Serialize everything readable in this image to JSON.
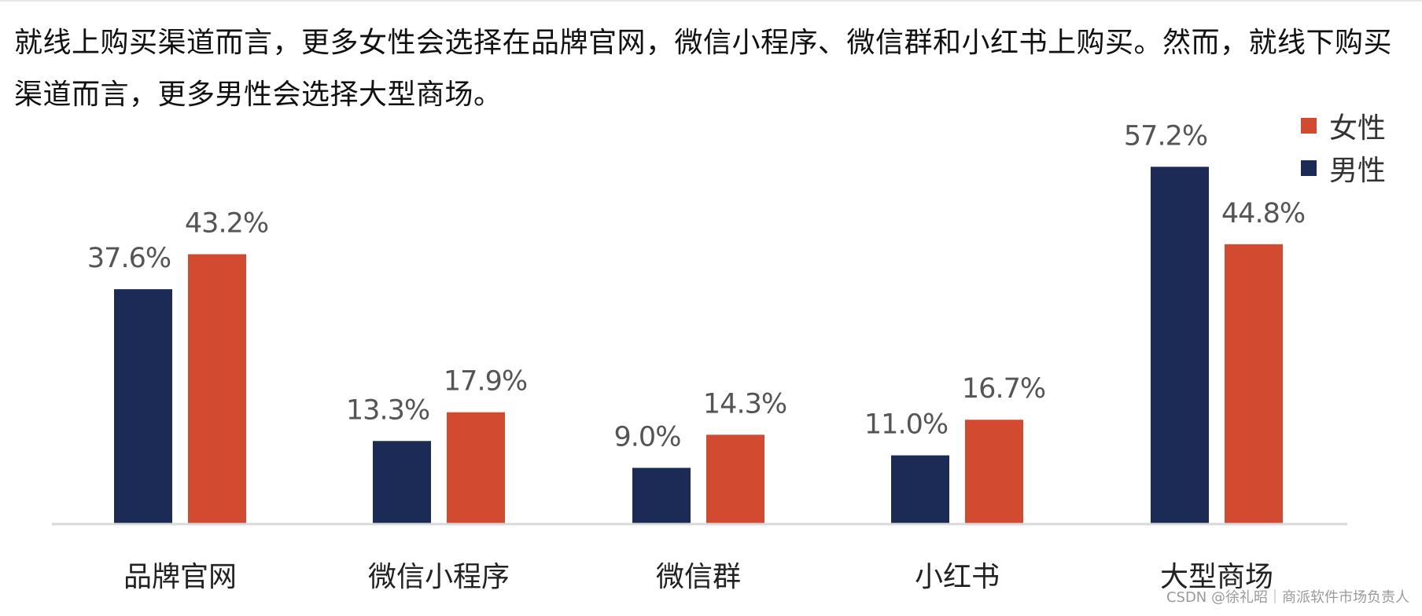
{
  "caption": "就线上购买渠道而言，更多女性会选择在品牌官网，微信小程序、微信群和小红书上购买。然而，就线下购买渠道而言，更多男性会选择大型商场。",
  "watermark": "CSDN @徐礼昭｜商派软件市场负责人",
  "colors": {
    "male": "#1c2b55",
    "female": "#d24a30",
    "axis": "#d9d9d9"
  },
  "chart_data": {
    "type": "bar",
    "categories": [
      "品牌官网",
      "微信小程序",
      "微信群",
      "小红书",
      "大型商场"
    ],
    "series": [
      {
        "name": "男性",
        "values": [
          37.6,
          13.3,
          9.0,
          11.0,
          57.2
        ],
        "labels": [
          "37.6%",
          "13.3%",
          "9.0%",
          "11.0%",
          "57.2%"
        ]
      },
      {
        "name": "女性",
        "values": [
          43.2,
          17.9,
          14.3,
          16.7,
          44.8
        ],
        "labels": [
          "43.2%",
          "17.9%",
          "14.3%",
          "16.7%",
          "44.8%"
        ]
      }
    ],
    "title": "",
    "xlabel": "",
    "ylabel": "",
    "ylim": [
      0,
      60
    ],
    "grid": false,
    "legend": "top-right",
    "legend_order": [
      "女性",
      "男性"
    ]
  }
}
